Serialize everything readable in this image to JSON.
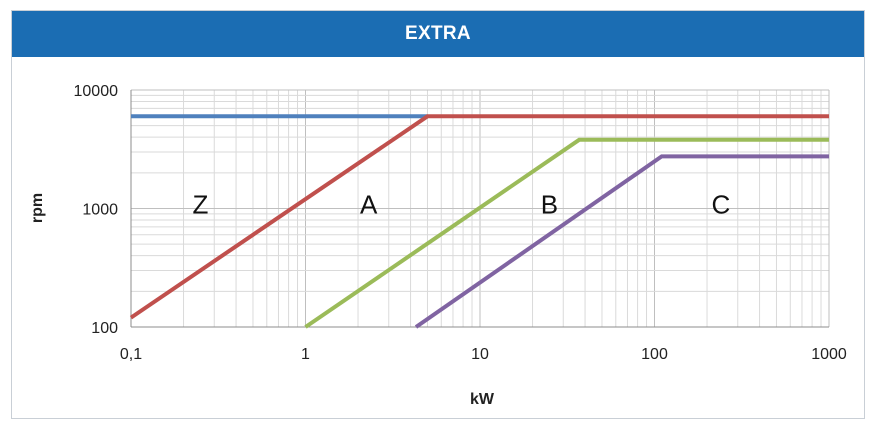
{
  "header": {
    "title": "EXTRA"
  },
  "chart_data": {
    "type": "line",
    "title": "",
    "xlabel": "kW",
    "ylabel": "rpm",
    "xscale": "log",
    "yscale": "log",
    "xlim": [
      0.1,
      1000
    ],
    "ylim": [
      100,
      10000
    ],
    "x_ticks": [
      "0,1",
      "1",
      "10",
      "100",
      "1000"
    ],
    "y_ticks": [
      "100",
      "1000",
      "10000"
    ],
    "grid": true,
    "legend": "none",
    "series": [
      {
        "color": "#4f81bd",
        "points": [
          [
            0.1,
            6000
          ],
          [
            5,
            6000
          ]
        ]
      },
      {
        "color": "#c0504d",
        "points": [
          [
            0.1,
            120
          ],
          [
            5,
            6000
          ],
          [
            1000,
            6000
          ]
        ]
      },
      {
        "color": "#9bbb59",
        "points": [
          [
            1,
            100
          ],
          [
            37,
            3800
          ],
          [
            1000,
            3800
          ]
        ]
      },
      {
        "color": "#8064a2",
        "points": [
          [
            4.3,
            100
          ],
          [
            110,
            2750
          ],
          [
            1000,
            2750
          ]
        ]
      }
    ],
    "annotations": [
      {
        "text": "Z",
        "x": 0.25,
        "y": 1150
      },
      {
        "text": "A",
        "x": 2.3,
        "y": 1150
      },
      {
        "text": "B",
        "x": 25,
        "y": 1150
      },
      {
        "text": "C",
        "x": 240,
        "y": 1150
      }
    ]
  }
}
